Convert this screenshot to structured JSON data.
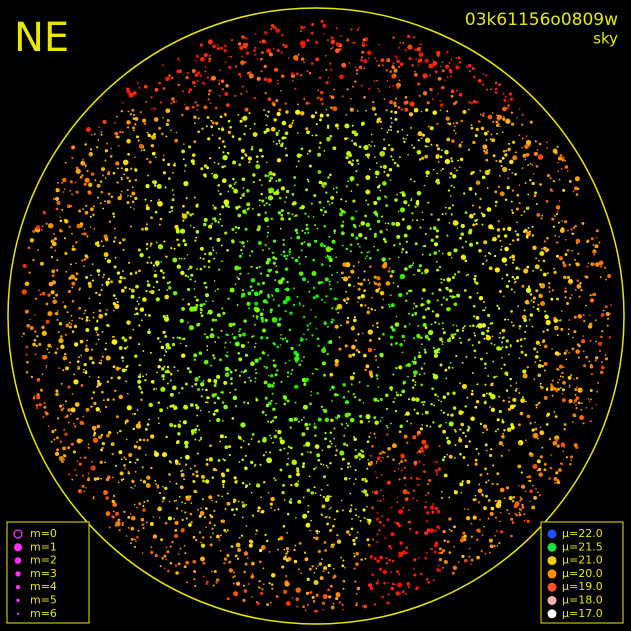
{
  "header": {
    "direction": "NE",
    "id": "03k61156o0809w",
    "label": "sky"
  },
  "magnitude_legend": [
    {
      "label": "m=0"
    },
    {
      "label": "m=1"
    },
    {
      "label": "m=2"
    },
    {
      "label": "m=3"
    },
    {
      "label": "m=4"
    },
    {
      "label": "m=5"
    },
    {
      "label": "m=6"
    }
  ],
  "brightness_legend": [
    {
      "label": "μ=22.0",
      "color": "#2050ff"
    },
    {
      "label": "μ=21.5",
      "color": "#20e040"
    },
    {
      "label": "μ=21.0",
      "color": "#f0d000"
    },
    {
      "label": "μ=20.0",
      "color": "#ff9000"
    },
    {
      "label": "μ=19.0",
      "color": "#ff5030"
    },
    {
      "label": "μ=18.0",
      "color": "#ffb0b0"
    },
    {
      "label": "μ=17.0",
      "color": "#ffffff"
    }
  ]
}
